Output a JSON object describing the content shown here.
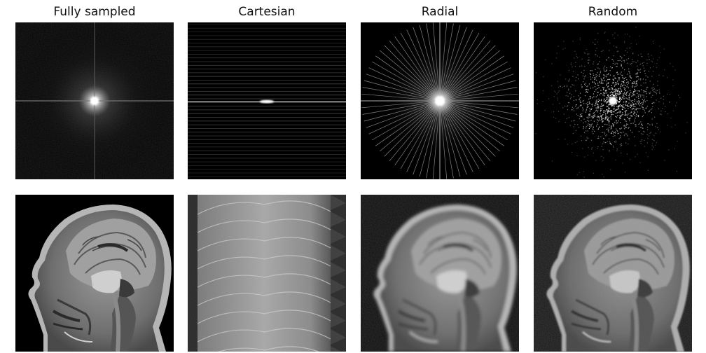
{
  "columns": [
    {
      "id": "fully",
      "title": "Fully sampled"
    },
    {
      "id": "cartesian",
      "title": "Cartesian"
    },
    {
      "id": "radial",
      "title": "Radial"
    },
    {
      "id": "random",
      "title": "Random"
    }
  ],
  "colors": {
    "background": "#ffffff",
    "panel": "#000000",
    "text": "#111111"
  }
}
